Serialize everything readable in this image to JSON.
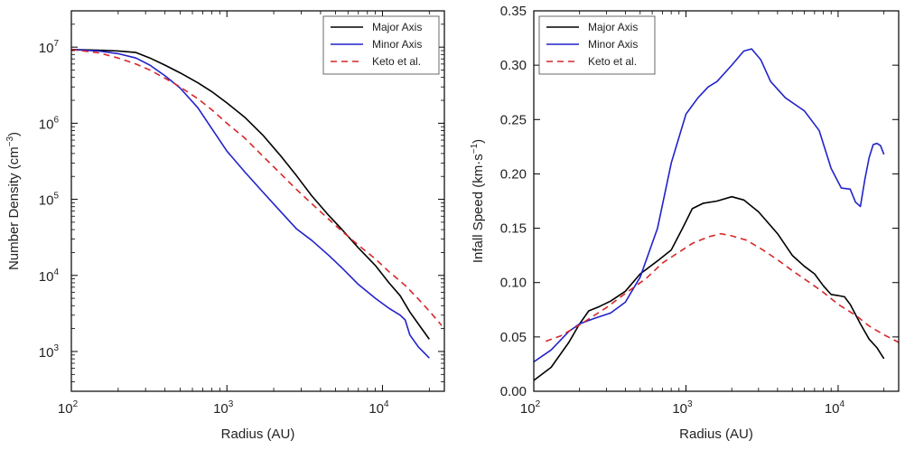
{
  "figure": {
    "background": "#ffffff"
  },
  "chart_data": [
    {
      "type": "line",
      "xscale": "log",
      "yscale": "log",
      "xlabel": "Radius (AU)",
      "ylabel": "Number Density (cm",
      "ylabel_sup": "−3",
      "ylabel_end": ")",
      "xlim": [
        100,
        25000
      ],
      "ylim": [
        300,
        30000000
      ],
      "xticks": [
        {
          "value": 100,
          "base": "10",
          "exp": "2"
        },
        {
          "value": 1000,
          "base": "10",
          "exp": "3"
        },
        {
          "value": 10000,
          "base": "10",
          "exp": "4"
        }
      ],
      "yticks": [
        {
          "value": 1000,
          "base": "10",
          "exp": "3"
        },
        {
          "value": 10000,
          "base": "10",
          "exp": "4"
        },
        {
          "value": 100000,
          "base": "10",
          "exp": "5"
        },
        {
          "value": 1000000,
          "base": "10",
          "exp": "6"
        },
        {
          "value": 10000000,
          "base": "10",
          "exp": "7"
        }
      ],
      "grid": false,
      "legend_position": "top-right",
      "series": [
        {
          "name": "Major Axis",
          "color": "#000000",
          "dash": "solid",
          "points": [
            [
              100,
              9300000
            ],
            [
              150,
              9100000
            ],
            [
              200,
              8900000
            ],
            [
              260,
              8500000
            ],
            [
              320,
              7200000
            ],
            [
              400,
              5800000
            ],
            [
              500,
              4600000
            ],
            [
              650,
              3400000
            ],
            [
              800,
              2600000
            ],
            [
              1000,
              1850000
            ],
            [
              1300,
              1200000
            ],
            [
              1700,
              700000
            ],
            [
              2200,
              380000
            ],
            [
              2800,
              205000
            ],
            [
              3500,
              112000
            ],
            [
              4500,
              62000
            ],
            [
              5500,
              40000
            ],
            [
              7000,
              23000
            ],
            [
              9000,
              13500
            ],
            [
              11000,
              8000
            ],
            [
              13000,
              5400
            ],
            [
              15000,
              3300
            ],
            [
              17000,
              2300
            ],
            [
              20000,
              1450
            ]
          ]
        },
        {
          "name": "Minor Axis",
          "color": "#2222cc",
          "dash": "solid",
          "points": [
            [
              100,
              9300000
            ],
            [
              150,
              8900000
            ],
            [
              200,
              8200000
            ],
            [
              260,
              7200000
            ],
            [
              320,
              5800000
            ],
            [
              400,
              4200000
            ],
            [
              500,
              2900000
            ],
            [
              650,
              1600000
            ],
            [
              800,
              850000
            ],
            [
              1000,
              430000
            ],
            [
              1300,
              230000
            ],
            [
              1700,
              125000
            ],
            [
              2200,
              70000
            ],
            [
              2800,
              41000
            ],
            [
              3500,
              29000
            ],
            [
              4500,
              18500
            ],
            [
              5500,
              12500
            ],
            [
              7000,
              7600
            ],
            [
              9000,
              5000
            ],
            [
              11000,
              3700
            ],
            [
              13000,
              3000
            ],
            [
              14000,
              2600
            ],
            [
              15000,
              1650
            ],
            [
              17000,
              1150
            ],
            [
              20000,
              820
            ]
          ]
        },
        {
          "name": "Keto et al.",
          "color": "#d62728",
          "dash": "dashed",
          "points": [
            [
              100,
              9300000
            ],
            [
              150,
              8400000
            ],
            [
              200,
              7200000
            ],
            [
              260,
              6000000
            ],
            [
              320,
              5000000
            ],
            [
              400,
              3900000
            ],
            [
              500,
              3000000
            ],
            [
              650,
              2100000
            ],
            [
              800,
              1500000
            ],
            [
              1000,
              1000000
            ],
            [
              1300,
              640000
            ],
            [
              1700,
              370000
            ],
            [
              2200,
              220000
            ],
            [
              2800,
              135000
            ],
            [
              3500,
              88000
            ],
            [
              4500,
              55000
            ],
            [
              5500,
              38000
            ],
            [
              7000,
              25000
            ],
            [
              9000,
              16500
            ],
            [
              11000,
              11200
            ],
            [
              14000,
              7400
            ],
            [
              17000,
              4900
            ],
            [
              20000,
              3400
            ],
            [
              24000,
              2200
            ]
          ]
        }
      ]
    },
    {
      "type": "line",
      "xscale": "log",
      "yscale": "linear",
      "xlabel": "Radius (AU)",
      "ylabel": "Infall Speed (km·s",
      "ylabel_sup": "−1",
      "ylabel_end": ")",
      "xlim": [
        100,
        25000
      ],
      "ylim": [
        0,
        0.35
      ],
      "xticks": [
        {
          "value": 100,
          "base": "10",
          "exp": "2"
        },
        {
          "value": 1000,
          "base": "10",
          "exp": "3"
        },
        {
          "value": 10000,
          "base": "10",
          "exp": "4"
        }
      ],
      "yticks": [
        {
          "value": 0,
          "label": "0.00"
        },
        {
          "value": 0.05,
          "label": "0.05"
        },
        {
          "value": 0.1,
          "label": "0.10"
        },
        {
          "value": 0.15,
          "label": "0.15"
        },
        {
          "value": 0.2,
          "label": "0.20"
        },
        {
          "value": 0.25,
          "label": "0.25"
        },
        {
          "value": 0.3,
          "label": "0.30"
        },
        {
          "value": 0.35,
          "label": "0.35"
        }
      ],
      "grid": false,
      "legend_position": "top-left",
      "series": [
        {
          "name": "Major Axis",
          "color": "#000000",
          "dash": "solid",
          "points": [
            [
              100,
              0.01
            ],
            [
              130,
              0.022
            ],
            [
              170,
              0.045
            ],
            [
              200,
              0.062
            ],
            [
              230,
              0.074
            ],
            [
              270,
              0.078
            ],
            [
              320,
              0.083
            ],
            [
              400,
              0.092
            ],
            [
              500,
              0.108
            ],
            [
              650,
              0.12
            ],
            [
              800,
              0.13
            ],
            [
              950,
              0.15
            ],
            [
              1100,
              0.168
            ],
            [
              1300,
              0.173
            ],
            [
              1600,
              0.175
            ],
            [
              2000,
              0.179
            ],
            [
              2400,
              0.176
            ],
            [
              3000,
              0.165
            ],
            [
              4000,
              0.145
            ],
            [
              5000,
              0.125
            ],
            [
              6000,
              0.115
            ],
            [
              7000,
              0.108
            ],
            [
              8000,
              0.097
            ],
            [
              9000,
              0.089
            ],
            [
              10000,
              0.088
            ],
            [
              11000,
              0.087
            ],
            [
              12000,
              0.08
            ],
            [
              14000,
              0.062
            ],
            [
              16000,
              0.048
            ],
            [
              18000,
              0.04
            ],
            [
              20000,
              0.03
            ]
          ]
        },
        {
          "name": "Minor Axis",
          "color": "#2222cc",
          "dash": "solid",
          "points": [
            [
              100,
              0.027
            ],
            [
              130,
              0.038
            ],
            [
              170,
              0.055
            ],
            [
              200,
              0.062
            ],
            [
              250,
              0.067
            ],
            [
              320,
              0.072
            ],
            [
              400,
              0.082
            ],
            [
              500,
              0.105
            ],
            [
              650,
              0.15
            ],
            [
              800,
              0.21
            ],
            [
              1000,
              0.255
            ],
            [
              1200,
              0.27
            ],
            [
              1400,
              0.28
            ],
            [
              1600,
              0.285
            ],
            [
              2000,
              0.3
            ],
            [
              2400,
              0.313
            ],
            [
              2700,
              0.315
            ],
            [
              3100,
              0.305
            ],
            [
              3600,
              0.285
            ],
            [
              4500,
              0.27
            ],
            [
              6000,
              0.258
            ],
            [
              7500,
              0.24
            ],
            [
              9000,
              0.205
            ],
            [
              10500,
              0.187
            ],
            [
              12000,
              0.186
            ],
            [
              13000,
              0.174
            ],
            [
              14000,
              0.17
            ],
            [
              15000,
              0.195
            ],
            [
              16000,
              0.215
            ],
            [
              17000,
              0.227
            ],
            [
              18000,
              0.228
            ],
            [
              19000,
              0.226
            ],
            [
              20000,
              0.218
            ]
          ]
        },
        {
          "name": "Keto et al.",
          "color": "#d62728",
          "dash": "dashed",
          "points": [
            [
              120,
              0.046
            ],
            [
              150,
              0.051
            ],
            [
              200,
              0.061
            ],
            [
              300,
              0.077
            ],
            [
              400,
              0.09
            ],
            [
              550,
              0.104
            ],
            [
              700,
              0.118
            ],
            [
              900,
              0.128
            ],
            [
              1100,
              0.136
            ],
            [
              1400,
              0.142
            ],
            [
              1700,
              0.145
            ],
            [
              2000,
              0.143
            ],
            [
              2500,
              0.139
            ],
            [
              3200,
              0.13
            ],
            [
              4000,
              0.121
            ],
            [
              5000,
              0.111
            ],
            [
              6500,
              0.1
            ],
            [
              8000,
              0.091
            ],
            [
              10000,
              0.08
            ],
            [
              13000,
              0.07
            ],
            [
              16000,
              0.06
            ],
            [
              20000,
              0.052
            ],
            [
              25000,
              0.045
            ]
          ]
        }
      ]
    }
  ]
}
